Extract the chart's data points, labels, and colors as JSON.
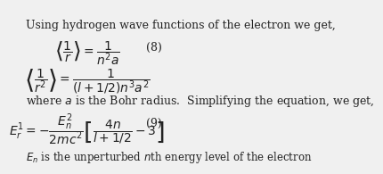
{
  "background_color": "#f0f0f0",
  "text_color": "#222222",
  "intro_text": "Using hydrogen wave functions of the electron we get,",
  "eq8_label": "(8)",
  "eq9_label": "(9)",
  "eq_r1": "\\left\\langle \\frac{1}{r} \\right\\rangle = \\frac{1}{n^2 a}",
  "eq_r2": "\\left\\langle \\frac{1}{r^2} \\right\\rangle = \\frac{1}{(l+1/2)n^3 a^2}",
  "middle_text": "where $a$ is the Bohr radius.  Simplifying the equation, we get,",
  "eq9": "E_r^1 = -\\frac{E_n^2}{2mc^2}\\left[\\frac{4n}{l+1/2} - 3\\right]",
  "bottom_text": "$E_n$ is the unperturbed $n$th energy level of the electron",
  "fontsize_main": 9,
  "fontsize_eq": 10
}
